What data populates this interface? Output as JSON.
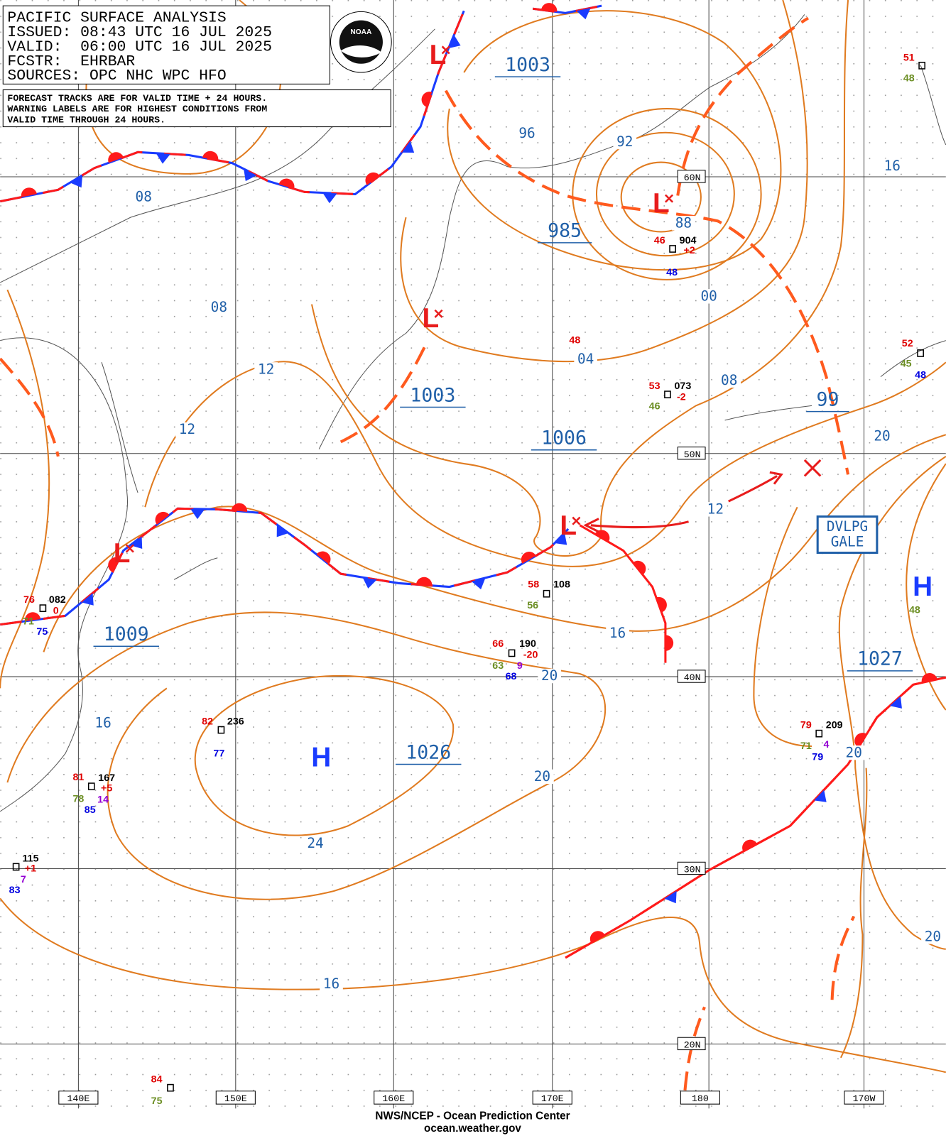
{
  "header": {
    "title": "PACIFIC SURFACE ANALYSIS",
    "issued": "ISSUED: 08:43 UTC 16 JUL 2025",
    "valid": "VALID:  06:00 UTC 16 JUL 2025",
    "forecaster": "FCSTR:  EHRBAR",
    "sources": "SOURCES: OPC NHC WPC HFO",
    "logo": "NOAA",
    "notice": [
      "FORECAST TRACKS ARE FOR VALID TIME + 24 HOURS.",
      "WARNING LABELS ARE FOR HIGHEST CONDITIONS FROM",
      "VALID TIME THROUGH 24 HOURS."
    ]
  },
  "latitude_labels": [
    "60N",
    "50N",
    "40N",
    "30N",
    "20N"
  ],
  "longitude_labels": [
    "140E",
    "150E",
    "160E",
    "170E",
    "180",
    "170W"
  ],
  "pressure_labels": [
    "1003",
    "985",
    "1003",
    "1006",
    "1009",
    "1026",
    "1027",
    "99"
  ],
  "isobar_labels": [
    "96",
    "92",
    "88",
    "00",
    "04",
    "08",
    "08",
    "08",
    "12",
    "12",
    "12",
    "16",
    "16",
    "16",
    "16",
    "20",
    "20",
    "20",
    "20",
    "20",
    "24"
  ],
  "systems": [
    "L",
    "L",
    "L",
    "L",
    "L",
    "H",
    "H"
  ],
  "station_labels": [
    {
      "text": "51",
      "color": "#e00000"
    },
    {
      "text": "48",
      "color": "#6b8e23"
    },
    {
      "text": "46",
      "color": "#e00000"
    },
    {
      "text": "904",
      "color": "#000000"
    },
    {
      "text": "+2",
      "color": "#e00000"
    },
    {
      "text": "48",
      "color": "#0000e0"
    },
    {
      "text": "48",
      "color": "#e00000"
    },
    {
      "text": "53",
      "color": "#e00000"
    },
    {
      "text": "073",
      "color": "#000000"
    },
    {
      "text": "-2",
      "color": "#e00000"
    },
    {
      "text": "46",
      "color": "#6b8e23"
    },
    {
      "text": "52",
      "color": "#e00000"
    },
    {
      "text": "45",
      "color": "#6b8e23"
    },
    {
      "text": "48",
      "color": "#0000e0"
    },
    {
      "text": "76",
      "color": "#e00000"
    },
    {
      "text": "082",
      "color": "#000000"
    },
    {
      "text": "0",
      "color": "#e00000"
    },
    {
      "text": "71",
      "color": "#6b8e23"
    },
    {
      "text": "75",
      "color": "#0000e0"
    },
    {
      "text": "58",
      "color": "#e00000"
    },
    {
      "text": "108",
      "color": "#000000"
    },
    {
      "text": "56",
      "color": "#6b8e23"
    },
    {
      "text": "48",
      "color": "#6b8e23"
    },
    {
      "text": "66",
      "color": "#e00000"
    },
    {
      "text": "190",
      "color": "#000000"
    },
    {
      "text": "-20",
      "color": "#e00000"
    },
    {
      "text": "63",
      "color": "#6b8e23"
    },
    {
      "text": "9",
      "color": "#9400d3"
    },
    {
      "text": "68",
      "color": "#0000e0"
    },
    {
      "text": "82",
      "color": "#e00000"
    },
    {
      "text": "236",
      "color": "#000000"
    },
    {
      "text": "77",
      "color": "#0000e0"
    },
    {
      "text": "81",
      "color": "#e00000"
    },
    {
      "text": "167",
      "color": "#000000"
    },
    {
      "text": "+5",
      "color": "#e00000"
    },
    {
      "text": "78",
      "color": "#6b8e23"
    },
    {
      "text": "14",
      "color": "#9400d3"
    },
    {
      "text": "85",
      "color": "#0000e0"
    },
    {
      "text": "79",
      "color": "#e00000"
    },
    {
      "text": "209",
      "color": "#000000"
    },
    {
      "text": "4",
      "color": "#9400d3"
    },
    {
      "text": "71",
      "color": "#6b8e23"
    },
    {
      "text": "79",
      "color": "#0000e0"
    },
    {
      "text": "115",
      "color": "#000000"
    },
    {
      "text": "+1",
      "color": "#e00000"
    },
    {
      "text": "7",
      "color": "#9400d3"
    },
    {
      "text": "83",
      "color": "#0000e0"
    },
    {
      "text": "84",
      "color": "#e00000"
    },
    {
      "text": "75",
      "color": "#6b8e23"
    }
  ],
  "warning": [
    "DVLPG",
    "GALE"
  ],
  "footer": [
    "NWS/NCEP - Ocean Prediction Center",
    "ocean.weather.gov"
  ]
}
